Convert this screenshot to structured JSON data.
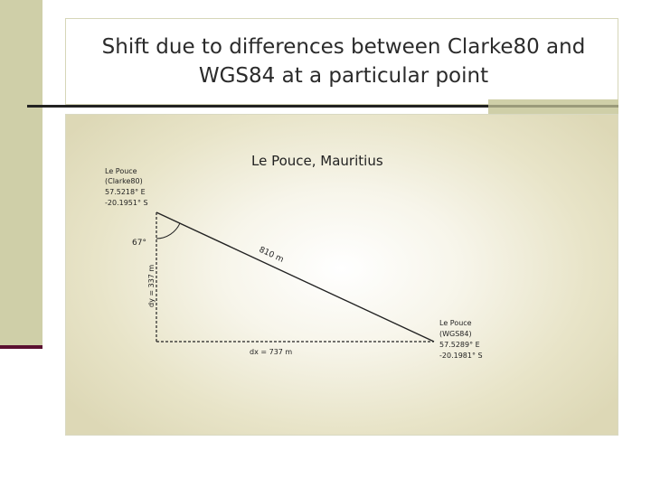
{
  "slide": {
    "title_line1": "Shift due to differences between Clarke80 and",
    "title_line2": "WGS84 at a particular point"
  },
  "diagram": {
    "heading": "Le Pouce, Mauritius",
    "clarke_point": {
      "name": "Le Pouce",
      "datum": "(Clarke80)",
      "lon": "57.5218° E",
      "lat": "-20.1951° S"
    },
    "wgs_point": {
      "name": "Le Pouce",
      "datum": "(WGS84)",
      "lon": "57.5289° E",
      "lat": "-20.1981° S"
    },
    "angle_label": "67°",
    "distance_label": "810 m",
    "dx_label": "dx = 737 m",
    "dy_label": "dy = 337 m"
  },
  "colors": {
    "sidebar": "#cfcfa8",
    "sidebar_accent": "#5a1030",
    "line": "#222222"
  }
}
